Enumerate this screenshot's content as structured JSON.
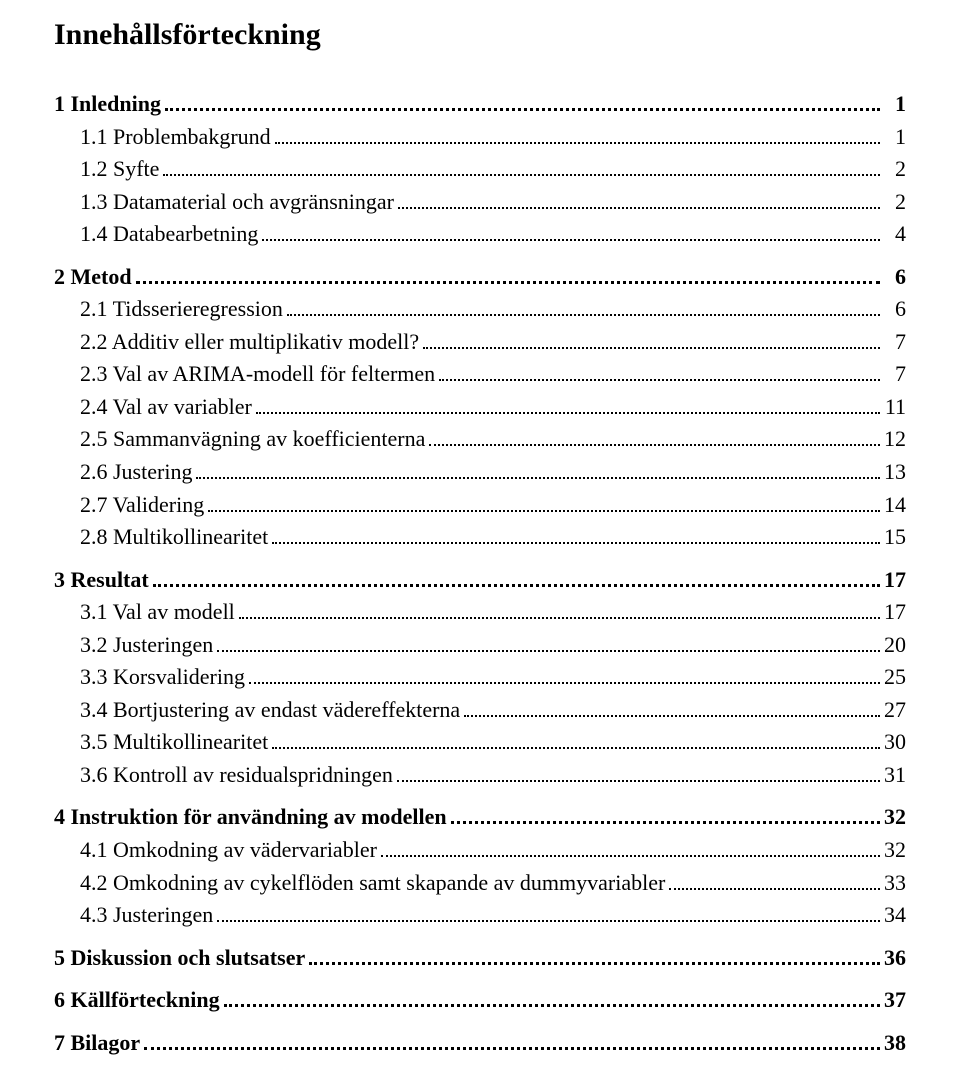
{
  "title": "Innehållsförteckning",
  "entries": [
    {
      "label": "1 Inledning",
      "page": "1",
      "level": 0,
      "bold": true
    },
    {
      "label": "1.1 Problembakgrund",
      "page": "1",
      "level": 1,
      "bold": false
    },
    {
      "label": "1.2 Syfte",
      "page": "2",
      "level": 1,
      "bold": false
    },
    {
      "label": "1.3 Datamaterial och avgränsningar",
      "page": "2",
      "level": 1,
      "bold": false
    },
    {
      "label": "1.4 Databearbetning",
      "page": "4",
      "level": 1,
      "bold": false
    },
    {
      "label": "2 Metod",
      "page": "6",
      "level": 0,
      "bold": true
    },
    {
      "label": "2.1 Tidsserieregression",
      "page": "6",
      "level": 1,
      "bold": false
    },
    {
      "label": "2.2 Additiv eller multiplikativ modell?",
      "page": "7",
      "level": 1,
      "bold": false
    },
    {
      "label": "2.3 Val av ARIMA-modell för feltermen",
      "page": "7",
      "level": 1,
      "bold": false
    },
    {
      "label": "2.4 Val av variabler",
      "page": "11",
      "level": 1,
      "bold": false
    },
    {
      "label": "2.5 Sammanvägning av koefficienterna",
      "page": "12",
      "level": 1,
      "bold": false
    },
    {
      "label": "2.6 Justering",
      "page": "13",
      "level": 1,
      "bold": false
    },
    {
      "label": "2.7 Validering",
      "page": "14",
      "level": 1,
      "bold": false
    },
    {
      "label": "2.8 Multikollinearitet",
      "page": "15",
      "level": 1,
      "bold": false
    },
    {
      "label": "3 Resultat",
      "page": "17",
      "level": 0,
      "bold": true
    },
    {
      "label": "3.1 Val av modell",
      "page": "17",
      "level": 1,
      "bold": false
    },
    {
      "label": "3.2 Justeringen",
      "page": "20",
      "level": 1,
      "bold": false
    },
    {
      "label": "3.3 Korsvalidering",
      "page": "25",
      "level": 1,
      "bold": false
    },
    {
      "label": "3.4 Bortjustering av endast vädereffekterna",
      "page": "27",
      "level": 1,
      "bold": false
    },
    {
      "label": "3.5 Multikollinearitet",
      "page": "30",
      "level": 1,
      "bold": false
    },
    {
      "label": "3.6 Kontroll av residualspridningen",
      "page": "31",
      "level": 1,
      "bold": false
    },
    {
      "label": "4 Instruktion för användning av modellen",
      "page": "32",
      "level": 0,
      "bold": true
    },
    {
      "label": "4.1 Omkodning av vädervariabler",
      "page": "32",
      "level": 1,
      "bold": false
    },
    {
      "label": "4.2 Omkodning av cykelflöden samt skapande av dummyvariabler",
      "page": "33",
      "level": 1,
      "bold": false
    },
    {
      "label": "4.3 Justeringen",
      "page": "34",
      "level": 1,
      "bold": false
    },
    {
      "label": "5 Diskussion och slutsatser",
      "page": "36",
      "level": 0,
      "bold": true
    },
    {
      "label": "6 Källförteckning",
      "page": "37",
      "level": 0,
      "bold": true
    },
    {
      "label": "7 Bilagor",
      "page": "38",
      "level": 0,
      "bold": true
    }
  ]
}
